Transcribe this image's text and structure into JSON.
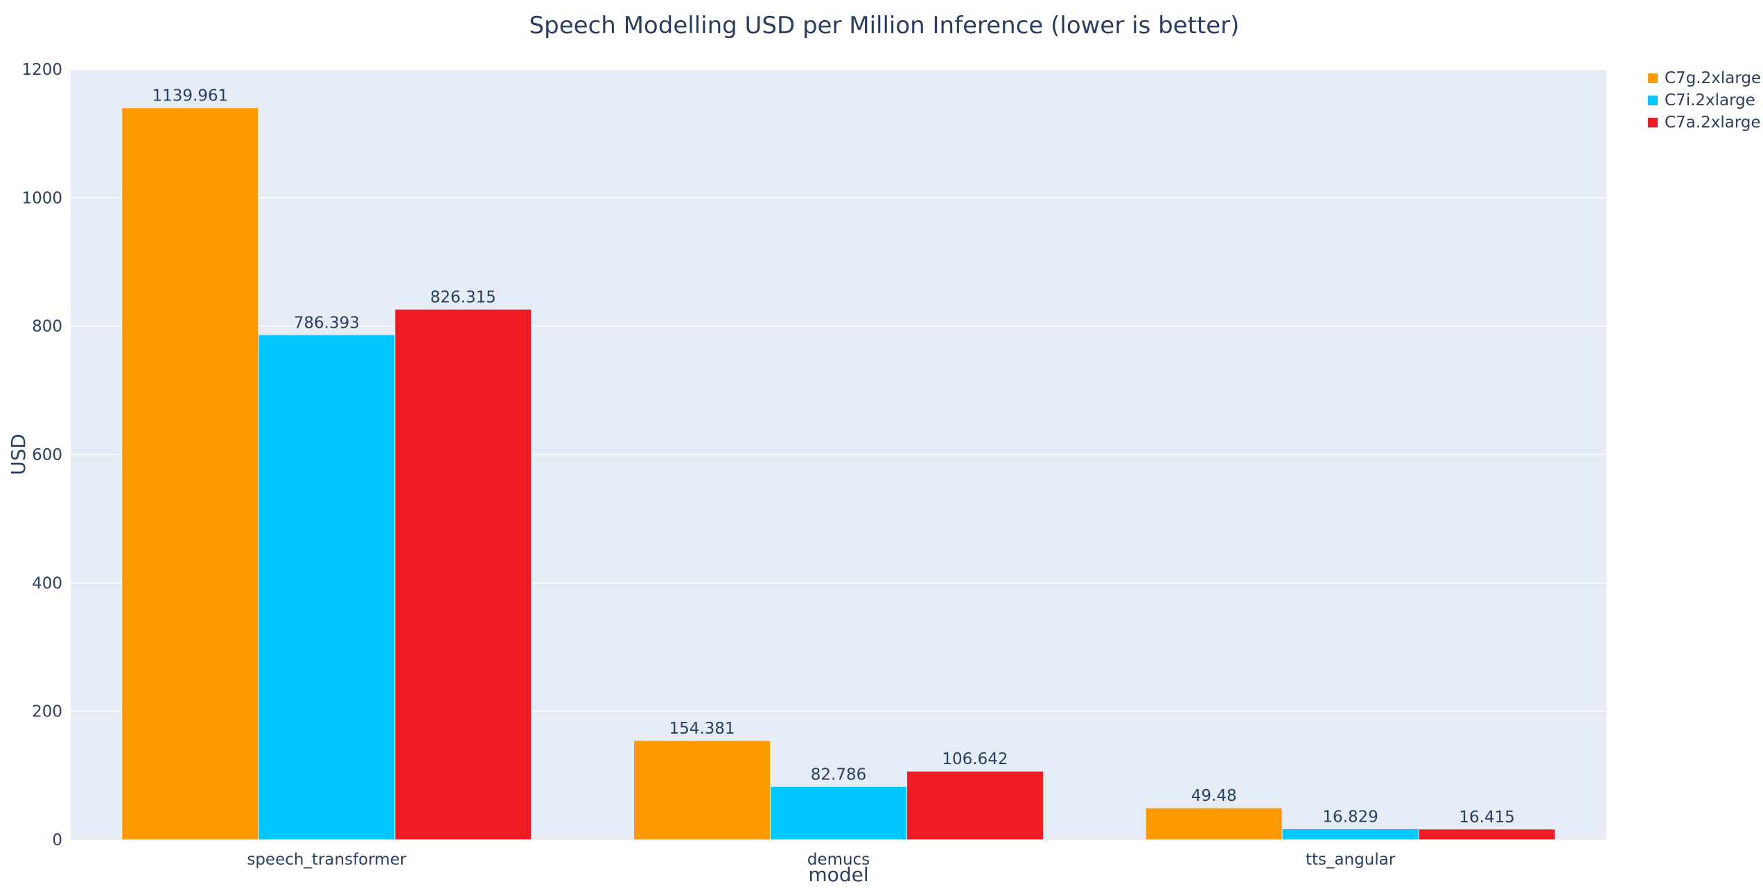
{
  "chart_data": {
    "type": "bar",
    "title": "Speech Modelling USD per Million Inference (lower is better)",
    "xlabel": "model",
    "ylabel": "USD",
    "categories": [
      "speech_transformer",
      "demucs",
      "tts_angular"
    ],
    "series": [
      {
        "name": "C7g.2xlarge",
        "color": "#ff9900",
        "values": [
          1139.961,
          154.381,
          49.48
        ]
      },
      {
        "name": "C7i.2xlarge",
        "color": "#00c7fd",
        "values": [
          786.393,
          82.786,
          16.829
        ]
      },
      {
        "name": "C7a.2xlarge",
        "color": "#ed1c24",
        "values": [
          826.315,
          106.642,
          16.415
        ]
      }
    ],
    "ylim": [
      0,
      1200
    ],
    "yticks": [
      0,
      200,
      400,
      600,
      800,
      1000,
      1200
    ],
    "ytick_labels": [
      "0",
      "200",
      "400",
      "600",
      "800",
      "1000",
      "1200"
    ],
    "grid": true,
    "legend_position": "top-right",
    "plot_background": "#e5ecf6"
  }
}
